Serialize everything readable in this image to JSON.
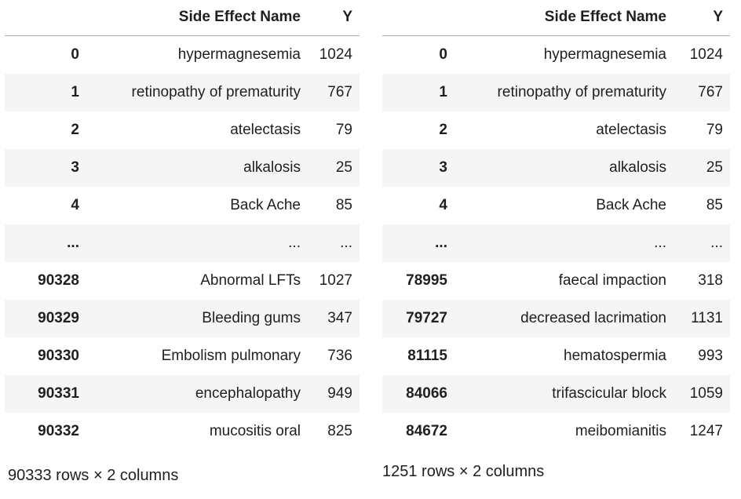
{
  "colors": {
    "stripe": "#f5f5f5",
    "header_border": "#ababab",
    "text": "#1f1f1f",
    "background": "#ffffff"
  },
  "tables": [
    {
      "id": "left",
      "columns": [
        "",
        "Side Effect Name",
        "Y"
      ],
      "rows": [
        [
          "0",
          "hypermagnesemia",
          "1024"
        ],
        [
          "1",
          "retinopathy of prematurity",
          "767"
        ],
        [
          "2",
          "atelectasis",
          "79"
        ],
        [
          "3",
          "alkalosis",
          "25"
        ],
        [
          "4",
          "Back Ache",
          "85"
        ],
        [
          "...",
          "...",
          "..."
        ],
        [
          "90328",
          "Abnormal LFTs",
          "1027"
        ],
        [
          "90329",
          "Bleeding gums",
          "347"
        ],
        [
          "90330",
          "Embolism pulmonary",
          "736"
        ],
        [
          "90331",
          "encephalopathy",
          "949"
        ],
        [
          "90332",
          "mucositis oral",
          "825"
        ]
      ],
      "footer": "90333 rows × 2 columns"
    },
    {
      "id": "right",
      "columns": [
        "",
        "Side Effect Name",
        "Y"
      ],
      "rows": [
        [
          "0",
          "hypermagnesemia",
          "1024"
        ],
        [
          "1",
          "retinopathy of prematurity",
          "767"
        ],
        [
          "2",
          "atelectasis",
          "79"
        ],
        [
          "3",
          "alkalosis",
          "25"
        ],
        [
          "4",
          "Back Ache",
          "85"
        ],
        [
          "...",
          "...",
          "..."
        ],
        [
          "78995",
          "faecal impaction",
          "318"
        ],
        [
          "79727",
          "decreased lacrimation",
          "1131"
        ],
        [
          "81115",
          "hematospermia",
          "993"
        ],
        [
          "84066",
          "trifascicular block",
          "1059"
        ],
        [
          "84672",
          "meibomianitis",
          "1247"
        ]
      ],
      "footer": "1251 rows × 2 columns"
    }
  ]
}
